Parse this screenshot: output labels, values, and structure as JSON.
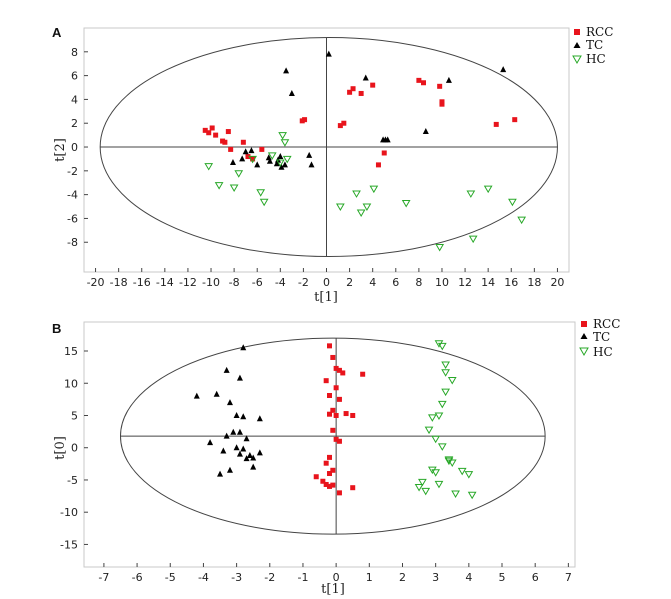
{
  "chart_data": [
    {
      "panel": "A",
      "type": "scatter",
      "xlabel": "t[1]",
      "ylabel": "t[2]",
      "xlim": [
        -21,
        21
      ],
      "ylim": [
        -10.5,
        10
      ],
      "xticks": [
        -20,
        -18,
        -16,
        -14,
        -12,
        -10,
        -8,
        -6,
        -4,
        -2,
        0,
        2,
        4,
        6,
        8,
        10,
        12,
        14,
        16,
        18,
        20
      ],
      "yticks": [
        -8,
        -6,
        -4,
        -2,
        0,
        2,
        4,
        6,
        8
      ],
      "ellipse": {
        "cx": 0.2,
        "cy": 0,
        "rx": 19.8,
        "ry": 9.2
      },
      "series": [
        {
          "name": "RCC",
          "color": "#e8141c",
          "marker": "square",
          "x": [
            -10.5,
            -10.2,
            -9.9,
            -9.6,
            -9.0,
            -8.8,
            -8.5,
            -8.3,
            -7.2,
            -6.8,
            -6.4,
            -5.6,
            -2.1,
            -1.9,
            1.2,
            1.5,
            2.0,
            2.3,
            3.0,
            4.0,
            4.5,
            5.0,
            8.0,
            8.4,
            9.8,
            10.0,
            10.0,
            14.7,
            16.3
          ],
          "y": [
            1.4,
            1.2,
            1.6,
            1.0,
            0.5,
            0.4,
            1.3,
            -0.2,
            0.4,
            -0.8,
            -1.0,
            -0.2,
            2.2,
            2.3,
            1.8,
            2.0,
            4.6,
            4.9,
            4.5,
            5.2,
            -1.5,
            -0.5,
            5.6,
            5.4,
            5.1,
            3.6,
            3.8,
            1.9,
            2.3
          ]
        },
        {
          "name": "TC",
          "color": "#000000",
          "marker": "triangle",
          "x": [
            -8.1,
            -7.3,
            -7.0,
            -6.5,
            -6.0,
            -5.0,
            -4.9,
            -4.3,
            -4.2,
            -4.0,
            -3.9,
            -3.6,
            -3.5,
            -3.0,
            -1.5,
            -1.3,
            0.2,
            3.4,
            4.9,
            5.1,
            5.3,
            8.6,
            10.6,
            15.3
          ],
          "y": [
            -1.3,
            -1.0,
            -0.4,
            -0.3,
            -1.5,
            -0.9,
            -1.2,
            -1.4,
            -1.1,
            -0.8,
            -1.7,
            -1.5,
            6.4,
            4.5,
            -0.7,
            -1.5,
            7.8,
            5.8,
            0.6,
            0.6,
            0.6,
            1.3,
            5.6,
            6.5
          ]
        },
        {
          "name": "HC",
          "color": "#28a828",
          "marker": "triangle-down",
          "x": [
            -10.2,
            -9.3,
            -8.0,
            -7.6,
            -6.4,
            -5.7,
            -5.4,
            -4.7,
            -4.0,
            -3.8,
            -3.6,
            -3.4,
            1.2,
            2.6,
            3.0,
            3.5,
            4.1,
            6.9,
            9.8,
            12.5,
            12.7,
            14.0,
            16.1,
            16.9
          ],
          "y": [
            -1.6,
            -3.2,
            -3.4,
            -2.2,
            -1.0,
            -3.8,
            -4.6,
            -0.7,
            -1.3,
            1.0,
            0.4,
            -1.0,
            -5.0,
            -3.9,
            -5.5,
            -5.0,
            -3.5,
            -4.7,
            -8.4,
            -3.9,
            -7.7,
            -3.5,
            -4.6,
            -6.1
          ]
        }
      ]
    },
    {
      "panel": "B",
      "type": "scatter",
      "xlabel": "t[1]",
      "ylabel": "t[0]",
      "xlim": [
        -7.6,
        7.2
      ],
      "ylim": [
        -18.5,
        19.5
      ],
      "xticks": [
        -7,
        -6,
        -5,
        -4,
        -3,
        -2,
        -1,
        0,
        1,
        2,
        3,
        4,
        5,
        6,
        7
      ],
      "yticks": [
        -15,
        -10,
        -5,
        0,
        5,
        10,
        15
      ],
      "ellipse": {
        "cx": -0.1,
        "cy": 1.8,
        "rx": 6.4,
        "ry": 15.2
      },
      "series": [
        {
          "name": "RCC",
          "color": "#e8141c",
          "marker": "square",
          "x": [
            -0.2,
            -0.1,
            0.0,
            0.1,
            0.2,
            -0.3,
            -0.2,
            0.0,
            0.1,
            -0.1,
            0.0,
            0.3,
            0.8,
            0.5,
            -0.2,
            -0.1,
            0.0,
            0.1,
            -0.2,
            -0.3,
            -0.6,
            -0.4,
            -0.3,
            -0.2,
            -0.1,
            0.1,
            0.5,
            -0.1,
            -0.2
          ],
          "y": [
            15.8,
            14.0,
            12.3,
            12.0,
            11.6,
            10.4,
            8.1,
            9.3,
            7.5,
            5.8,
            5.0,
            5.3,
            11.4,
            5.0,
            5.2,
            2.7,
            1.3,
            1.0,
            -1.5,
            -2.4,
            -4.5,
            -5.2,
            -5.7,
            -6.0,
            -5.8,
            -7.0,
            -6.2,
            -3.5,
            -4.0
          ],
          "note": "approximate"
        },
        {
          "name": "TC",
          "color": "#000000",
          "marker": "triangle",
          "x": [
            -4.2,
            -3.6,
            -3.3,
            -2.9,
            -2.8,
            -2.3,
            -3.2,
            -3.0,
            -2.8,
            -3.1,
            -2.9,
            -2.7,
            -3.3,
            -3.0,
            -2.7,
            -2.5,
            -3.2,
            -3.5,
            -3.8,
            -2.9,
            -2.6,
            -3.4,
            -2.8,
            -2.5,
            -2.3
          ],
          "y": [
            8.0,
            8.3,
            12.0,
            10.8,
            15.5,
            4.5,
            7.0,
            5.0,
            4.8,
            2.4,
            2.4,
            1.4,
            1.8,
            0.0,
            -1.7,
            -3.0,
            -3.5,
            -4.1,
            0.8,
            -1.0,
            -1.2,
            -0.5,
            -0.2,
            -1.6,
            -0.8
          ],
          "note": "approximate"
        },
        {
          "name": "HC",
          "color": "#28a828",
          "marker": "triangle-down",
          "x": [
            3.1,
            3.2,
            3.3,
            3.3,
            3.5,
            3.3,
            3.2,
            3.1,
            2.9,
            2.8,
            3.0,
            3.2,
            3.4,
            3.5,
            3.8,
            4.0,
            2.6,
            2.5,
            2.7,
            3.0,
            3.1,
            3.6,
            4.1,
            2.9,
            3.4
          ],
          "y": [
            16.2,
            15.8,
            12.9,
            11.7,
            10.5,
            8.7,
            6.8,
            5.0,
            4.7,
            2.8,
            1.4,
            0.2,
            -1.8,
            -2.3,
            -3.6,
            -4.1,
            -5.3,
            -6.1,
            -6.7,
            -3.8,
            -5.6,
            -7.1,
            -7.3,
            -3.4,
            -2.0
          ],
          "note": "approximate"
        }
      ]
    }
  ],
  "panels": {
    "A": {
      "label": "A",
      "legend": [
        "RCC",
        "TC",
        "HC"
      ]
    },
    "B": {
      "label": "B",
      "legend": [
        "RCC",
        "TC",
        "HC"
      ]
    }
  }
}
